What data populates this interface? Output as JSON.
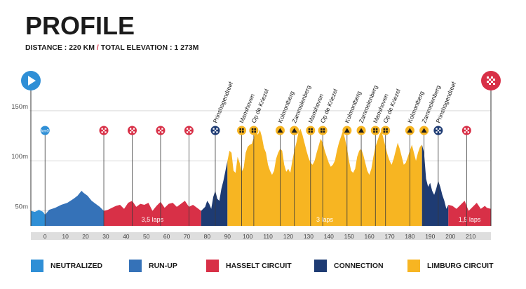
{
  "header": {
    "title": "PROFILE",
    "distance_label": "DISTANCE : 220 KM",
    "separator": "/",
    "elevation_label": "TOTAL ELEVATION : 1 273M"
  },
  "chart_data": {
    "type": "area",
    "title": "PROFILE",
    "xlabel": "",
    "ylabel": "",
    "x_range": [
      -7,
      220
    ],
    "y_range": [
      35,
      180
    ],
    "y_ticks": [
      {
        "value": 150,
        "label": "150m"
      },
      {
        "value": 100,
        "label": "100m"
      },
      {
        "value": 50,
        "label": "50m"
      }
    ],
    "x_ticks": [
      0,
      10,
      20,
      30,
      40,
      50,
      60,
      70,
      80,
      90,
      100,
      110,
      120,
      130,
      140,
      150,
      160,
      170,
      180,
      190,
      200,
      210
    ],
    "segments": [
      {
        "name": "NEUTRALIZED",
        "from": -7,
        "to": 0,
        "color": "#2f8fd6",
        "label": ""
      },
      {
        "name": "RUN-UP",
        "from": 0,
        "to": 29,
        "color": "#3572b8",
        "label": ""
      },
      {
        "name": "HASSELT CIRCUIT",
        "from": 29,
        "to": 77,
        "color": "#d83047",
        "label": "3,5 laps"
      },
      {
        "name": "CONNECTION",
        "from": 77,
        "to": 90,
        "color": "#1e3b73",
        "label": ""
      },
      {
        "name": "LIMBURG CIRCUIT",
        "from": 90,
        "to": 186,
        "color": "#f7b522",
        "label": "3 laps"
      },
      {
        "name": "CONNECTION",
        "from": 186,
        "to": 199,
        "color": "#1e3b73",
        "label": ""
      },
      {
        "name": "HASSELT CIRCUIT",
        "from": 199,
        "to": 220,
        "color": "#d83047",
        "label": "1,5 laps"
      }
    ],
    "profile": [
      [
        -7,
        50
      ],
      [
        -5,
        49
      ],
      [
        -3,
        51
      ],
      [
        -1,
        49
      ],
      [
        0,
        46
      ],
      [
        2,
        51
      ],
      [
        5,
        53
      ],
      [
        8,
        56
      ],
      [
        11,
        58
      ],
      [
        14,
        62
      ],
      [
        16,
        65
      ],
      [
        18,
        70
      ],
      [
        19,
        68
      ],
      [
        21,
        65
      ],
      [
        23,
        60
      ],
      [
        25,
        57
      ],
      [
        27,
        54
      ],
      [
        29,
        50
      ],
      [
        31,
        51
      ],
      [
        33,
        53
      ],
      [
        35,
        55
      ],
      [
        37,
        56
      ],
      [
        39,
        52
      ],
      [
        41,
        58
      ],
      [
        43,
        60
      ],
      [
        45,
        54
      ],
      [
        47,
        57
      ],
      [
        49,
        56
      ],
      [
        51,
        58
      ],
      [
        53,
        50
      ],
      [
        55,
        55
      ],
      [
        57,
        59
      ],
      [
        59,
        53
      ],
      [
        61,
        57
      ],
      [
        63,
        58
      ],
      [
        65,
        54
      ],
      [
        67,
        57
      ],
      [
        69,
        60
      ],
      [
        71,
        54
      ],
      [
        73,
        56
      ],
      [
        75,
        53
      ],
      [
        77,
        50
      ],
      [
        79,
        54
      ],
      [
        80,
        60
      ],
      [
        81,
        57
      ],
      [
        82,
        52
      ],
      [
        83,
        64
      ],
      [
        84,
        70
      ],
      [
        85,
        62
      ],
      [
        86,
        60
      ],
      [
        87,
        72
      ],
      [
        88,
        80
      ],
      [
        89,
        90
      ],
      [
        90,
        100
      ],
      [
        91,
        110
      ],
      [
        92,
        108
      ],
      [
        93,
        90
      ],
      [
        94,
        88
      ],
      [
        95,
        104
      ],
      [
        96,
        98
      ],
      [
        97,
        89
      ],
      [
        98,
        93
      ],
      [
        99,
        108
      ],
      [
        100,
        114
      ],
      [
        101,
        116
      ],
      [
        102,
        117
      ],
      [
        103,
        123
      ],
      [
        104,
        131
      ],
      [
        105,
        126
      ],
      [
        106,
        131
      ],
      [
        107,
        124
      ],
      [
        108,
        113
      ],
      [
        109,
        108
      ],
      [
        110,
        96
      ],
      [
        111,
        90
      ],
      [
        112,
        86
      ],
      [
        113,
        90
      ],
      [
        114,
        102
      ],
      [
        115,
        108
      ],
      [
        116,
        112
      ],
      [
        117,
        110
      ],
      [
        118,
        96
      ],
      [
        119,
        89
      ],
      [
        120,
        92
      ],
      [
        121,
        88
      ],
      [
        122,
        100
      ],
      [
        123,
        110
      ],
      [
        124,
        118
      ],
      [
        125,
        128
      ],
      [
        126,
        132
      ],
      [
        127,
        126
      ],
      [
        128,
        118
      ],
      [
        129,
        110
      ],
      [
        130,
        103
      ],
      [
        131,
        98
      ],
      [
        132,
        96
      ],
      [
        133,
        100
      ],
      [
        134,
        108
      ],
      [
        135,
        115
      ],
      [
        136,
        122
      ],
      [
        137,
        118
      ],
      [
        138,
        110
      ],
      [
        139,
        104
      ],
      [
        140,
        98
      ],
      [
        141,
        94
      ],
      [
        142,
        96
      ],
      [
        143,
        100
      ],
      [
        144,
        110
      ],
      [
        145,
        118
      ],
      [
        146,
        124
      ],
      [
        147,
        130
      ],
      [
        148,
        122
      ],
      [
        149,
        112
      ],
      [
        150,
        100
      ],
      [
        151,
        90
      ],
      [
        152,
        88
      ],
      [
        153,
        92
      ],
      [
        154,
        104
      ],
      [
        155,
        110
      ],
      [
        156,
        112
      ],
      [
        157,
        106
      ],
      [
        158,
        98
      ],
      [
        159,
        90
      ],
      [
        160,
        86
      ],
      [
        161,
        92
      ],
      [
        162,
        104
      ],
      [
        163,
        114
      ],
      [
        164,
        120
      ],
      [
        165,
        126
      ],
      [
        166,
        130
      ],
      [
        167,
        122
      ],
      [
        168,
        114
      ],
      [
        169,
        106
      ],
      [
        170,
        100
      ],
      [
        171,
        96
      ],
      [
        172,
        102
      ],
      [
        173,
        110
      ],
      [
        174,
        118
      ],
      [
        175,
        112
      ],
      [
        176,
        104
      ],
      [
        177,
        96
      ],
      [
        178,
        98
      ],
      [
        179,
        104
      ],
      [
        180,
        110
      ],
      [
        181,
        116
      ],
      [
        182,
        108
      ],
      [
        183,
        100
      ],
      [
        184,
        108
      ],
      [
        185,
        114
      ],
      [
        186,
        116
      ],
      [
        187,
        108
      ],
      [
        188,
        82
      ],
      [
        189,
        74
      ],
      [
        190,
        78
      ],
      [
        191,
        70
      ],
      [
        192,
        66
      ],
      [
        193,
        72
      ],
      [
        194,
        80
      ],
      [
        195,
        74
      ],
      [
        196,
        66
      ],
      [
        197,
        60
      ],
      [
        198,
        52
      ],
      [
        199,
        56
      ],
      [
        201,
        55
      ],
      [
        203,
        52
      ],
      [
        205,
        56
      ],
      [
        207,
        60
      ],
      [
        209,
        50
      ],
      [
        211,
        54
      ],
      [
        213,
        58
      ],
      [
        215,
        52
      ],
      [
        217,
        55
      ],
      [
        218,
        53
      ],
      [
        220,
        52
      ]
    ],
    "climbs": [
      "Prinshagendreef",
      "Manshoven",
      "Op de Kriezel",
      "Kolmontberg",
      "Zammelenberg",
      "Manshoven",
      "Op de Kriezel",
      "Kolmontberg",
      "Zammelenberg",
      "Manshoven",
      "Op de Kriezel",
      "Kolmontberg",
      "Zammelenberg",
      "Prinshagendreef"
    ],
    "markers": [
      {
        "km": 0,
        "type": "km0",
        "color": "#2f8fd6",
        "text": "km0"
      },
      {
        "km": 29,
        "type": "finish-line",
        "color": "#d83047",
        "text": ""
      },
      {
        "km": 43,
        "type": "finish-line",
        "color": "#d83047",
        "text": ""
      },
      {
        "km": 57,
        "type": "finish-line",
        "color": "#d83047",
        "text": ""
      },
      {
        "km": 71,
        "type": "finish-line",
        "color": "#d83047",
        "text": ""
      },
      {
        "km": 84,
        "type": "finish-line",
        "color": "#1e3b73",
        "text": "",
        "climb": 0
      },
      {
        "km": 97,
        "type": "cobbles",
        "color": "#f7b522",
        "text": "",
        "climb": 1
      },
      {
        "km": 103,
        "type": "cobbles",
        "color": "#f7b522",
        "text": "",
        "climb": 2
      },
      {
        "km": 116,
        "type": "climb",
        "color": "#f7b522",
        "text": "",
        "climb": 3
      },
      {
        "km": 123,
        "type": "climb",
        "color": "#f7b522",
        "text": "",
        "climb": 4
      },
      {
        "km": 131,
        "type": "cobbles",
        "color": "#f7b522",
        "text": "",
        "climb": 5
      },
      {
        "km": 137,
        "type": "cobbles",
        "color": "#f7b522",
        "text": "",
        "climb": 6
      },
      {
        "km": 149,
        "type": "climb",
        "color": "#f7b522",
        "text": "",
        "climb": 7
      },
      {
        "km": 156,
        "type": "climb",
        "color": "#f7b522",
        "text": "",
        "climb": 8
      },
      {
        "km": 163,
        "type": "cobbles",
        "color": "#f7b522",
        "text": "",
        "climb": 9
      },
      {
        "km": 168,
        "type": "cobbles",
        "color": "#f7b522",
        "text": "",
        "climb": 10
      },
      {
        "km": 180,
        "type": "climb",
        "color": "#f7b522",
        "text": "",
        "climb": 11
      },
      {
        "km": 187,
        "type": "climb",
        "color": "#f7b522",
        "text": "",
        "climb": 12
      },
      {
        "km": 194,
        "type": "finish-line",
        "color": "#1e3b73",
        "text": "",
        "climb": 13
      },
      {
        "km": 208,
        "type": "finish-line",
        "color": "#d83047",
        "text": ""
      }
    ],
    "start_icon": "play-icon",
    "finish_icon": "checkered-flag-icon"
  },
  "legend": [
    {
      "label": "NEUTRALIZED",
      "color": "#2f8fd6"
    },
    {
      "label": "RUN-UP",
      "color": "#3572b8"
    },
    {
      "label": "HASSELT CIRCUIT",
      "color": "#d83047"
    },
    {
      "label": "CONNECTION",
      "color": "#1e3b73"
    },
    {
      "label": "LIMBURG CIRCUIT",
      "color": "#f7b522"
    }
  ]
}
